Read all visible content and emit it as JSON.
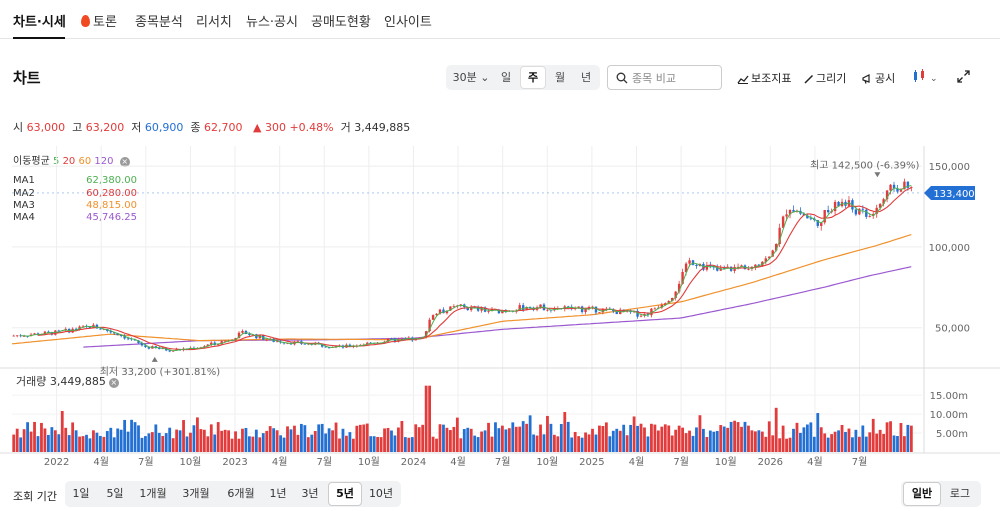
{
  "nav": {
    "tabs": [
      "차트·시세",
      "토론",
      "종목분석",
      "리서치",
      "뉴스·공시",
      "공매도현황",
      "인사이트"
    ],
    "active": 0
  },
  "header": {
    "title": "차트",
    "interval_label": "30분",
    "timeframes": [
      "일",
      "주",
      "월",
      "년"
    ],
    "selected_timeframe": "주",
    "search_placeholder": "종목 비교",
    "tools": {
      "indicators": "보조지표",
      "draw": "그리기",
      "disclosure": "공시"
    }
  },
  "ohlc": {
    "open_label": "시",
    "open": "63,000",
    "high_label": "고",
    "high": "63,200",
    "low_label": "저",
    "low": "60,900",
    "close_label": "종",
    "close": "62,700",
    "change": "300",
    "change_pct": "+0.48%",
    "volume_label": "거",
    "volume": "3,449,885"
  },
  "ma_legend": {
    "title": "이동평균",
    "periods": [
      "5",
      "20",
      "60",
      "120"
    ],
    "rows": [
      {
        "name": "MA1",
        "value": "62,380.00",
        "color": "#4caf50"
      },
      {
        "name": "MA2",
        "value": "60,280.00",
        "color": "#e23b3b"
      },
      {
        "name": "MA3",
        "value": "48,815.00",
        "color": "#f0912c"
      },
      {
        "name": "MA4",
        "value": "45,746.25",
        "color": "#9b59d0"
      }
    ]
  },
  "volume_legend": {
    "label": "거래량",
    "value": "3,449,885"
  },
  "period_bar": {
    "label": "조회 기간",
    "options": [
      "1일",
      "5일",
      "1개월",
      "3개월",
      "6개월",
      "1년",
      "3년",
      "5년",
      "10년"
    ],
    "selected": "5년",
    "scale_options": [
      "일반",
      "로그"
    ],
    "scale_selected": "일반"
  },
  "chart_data": {
    "type": "candlestick",
    "x_range": [
      2021.75,
      2026.85
    ],
    "y_range": [
      30000,
      160000
    ],
    "y_ticks": [
      50000,
      100000,
      150000
    ],
    "y_tick_labels": [
      "50,000",
      "100,000",
      "150,000"
    ],
    "volume_range": [
      0,
      19000000
    ],
    "volume_ticks": [
      5000000,
      10000000,
      15000000
    ],
    "volume_tick_labels": [
      "5.00m",
      "10.00m",
      "15.00m"
    ],
    "x_ticks": [
      2022.0,
      2022.25,
      2022.5,
      2022.75,
      2023.0,
      2023.25,
      2023.5,
      2023.75,
      2024.0,
      2024.25,
      2024.5,
      2024.75,
      2025.0,
      2025.25,
      2025.5,
      2025.75,
      2026.0,
      2026.25,
      2026.5
    ],
    "x_tick_labels": [
      "2022",
      "4월",
      "7월",
      "10월",
      "2023",
      "4월",
      "7월",
      "10월",
      "2024",
      "4월",
      "7월",
      "10월",
      "2025",
      "4월",
      "7월",
      "10월",
      "2026",
      "4월",
      "7월"
    ],
    "price_path": [
      [
        2021.75,
        45000
      ],
      [
        2022.0,
        47000
      ],
      [
        2022.2,
        51000
      ],
      [
        2022.35,
        46000
      ],
      [
        2022.5,
        38000
      ],
      [
        2022.65,
        36000
      ],
      [
        2022.8,
        38000
      ],
      [
        2022.95,
        42000
      ],
      [
        2023.05,
        47000
      ],
      [
        2023.2,
        42000
      ],
      [
        2023.4,
        40000
      ],
      [
        2023.6,
        38000
      ],
      [
        2023.85,
        42000
      ],
      [
        2024.05,
        43000
      ],
      [
        2024.1,
        58000
      ],
      [
        2024.25,
        63000
      ],
      [
        2024.45,
        60000
      ],
      [
        2024.65,
        63000
      ],
      [
        2024.85,
        62000
      ],
      [
        2025.05,
        61000
      ],
      [
        2025.3,
        58000
      ],
      [
        2025.45,
        70000
      ],
      [
        2025.55,
        92000
      ],
      [
        2025.7,
        85000
      ],
      [
        2025.85,
        88000
      ],
      [
        2026.0,
        93000
      ],
      [
        2026.1,
        126000
      ],
      [
        2026.25,
        115000
      ],
      [
        2026.4,
        128000
      ],
      [
        2026.55,
        118000
      ],
      [
        2026.7,
        138000
      ],
      [
        2026.8,
        135000
      ]
    ],
    "ma4_path": [
      [
        2022.15,
        38000
      ],
      [
        2022.8,
        42000
      ],
      [
        2023.5,
        42500
      ],
      [
        2024.0,
        43500
      ],
      [
        2024.5,
        49000
      ],
      [
        2025.0,
        52500
      ],
      [
        2025.5,
        56000
      ],
      [
        2025.9,
        65000
      ],
      [
        2026.3,
        75000
      ],
      [
        2026.55,
        82000
      ],
      [
        2026.8,
        88000
      ]
    ],
    "ma3_path": [
      [
        2021.75,
        40000
      ],
      [
        2022.3,
        46000
      ],
      [
        2022.8,
        42000
      ],
      [
        2023.3,
        43000
      ],
      [
        2024.0,
        42500
      ],
      [
        2024.5,
        54000
      ],
      [
        2025.0,
        58000
      ],
      [
        2025.5,
        66000
      ],
      [
        2025.9,
        78000
      ],
      [
        2026.3,
        92000
      ],
      [
        2026.6,
        101000
      ],
      [
        2026.8,
        108000
      ]
    ],
    "volume_series_seed": 7,
    "annotations": {
      "high": {
        "label": "최고",
        "value": "142,500",
        "pct": "(-6.39%)",
        "x": 2026.6,
        "price": 142500
      },
      "low": {
        "label": "최저",
        "value": "33,200",
        "pct": "(+301.81%)",
        "x": 2022.55,
        "price": 33200
      },
      "current": {
        "value": "133,400",
        "price": 133400,
        "color": "#2370d4"
      }
    },
    "up_color": "#e23b3b",
    "down_color": "#2370d4"
  }
}
